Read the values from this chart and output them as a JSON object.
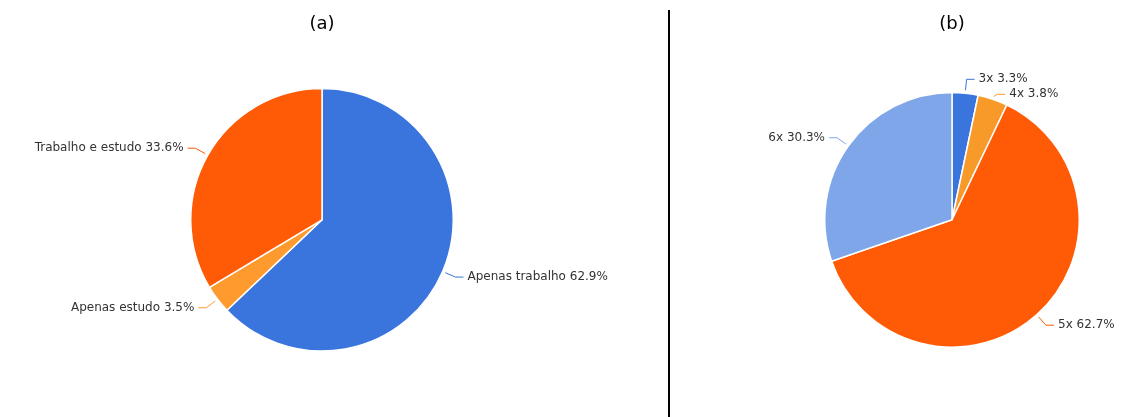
{
  "chart_data": [
    {
      "type": "pie",
      "title": "(a)",
      "categories": [
        "Apenas trabalho",
        "Apenas estudo",
        "Trabalho e estudo"
      ],
      "values": [
        62.9,
        3.5,
        33.6
      ],
      "value_labels": [
        "62.9%",
        "3.5%",
        "33.6%"
      ],
      "colors": [
        "#3a75dd",
        "#ff9a2e",
        "#ff5a05"
      ],
      "legend": false
    },
    {
      "type": "pie",
      "title": "(b)",
      "categories": [
        "3x",
        "4x",
        "5x",
        "6x"
      ],
      "values": [
        3.3,
        3.8,
        62.7,
        30.3
      ],
      "value_labels": [
        "3.3%",
        "3.8%",
        "62.7%",
        "30.3%"
      ],
      "colors": [
        "#3a75dd",
        "#f79a2a",
        "#ff5a05",
        "#7fa6e8"
      ],
      "legend": false
    }
  ]
}
